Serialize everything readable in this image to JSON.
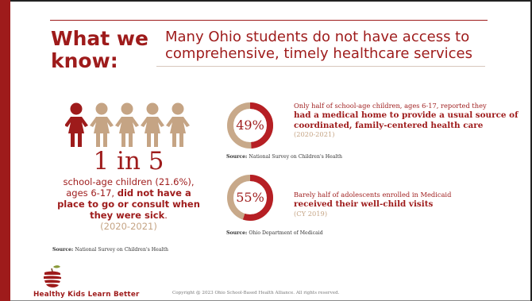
{
  "header": {
    "title": "What we know:",
    "subtitle": "Many Ohio students do not have access to comprehensive, timely healthcare services"
  },
  "left_stat": {
    "figure": "1 in 5",
    "highlighted_people": 1,
    "total_people": 5,
    "desc_plain": "school-age children (21.6%), ages 6-17,",
    "desc_bold": "did not have a place to go or consult when they were sick",
    "desc_end": ".",
    "years": "(2020-2021)",
    "source_label": "Source:",
    "source_text": "National Survey on Children's Health"
  },
  "stats": [
    {
      "percent_label": "49%",
      "percent_value": 49,
      "lead": "Only half of school-age children, ages 6-17, reported they",
      "emphasis": "had a medical home to provide a usual source of coordinated, family-centered health care",
      "years": "(2020-2021)",
      "source_label": "Source:",
      "source_text": "National Survey on Children's Health"
    },
    {
      "percent_label": "55%",
      "percent_value": 55,
      "lead": "Barely half of adolescents enrolled in Medicaid",
      "emphasis": "received their well-child visits",
      "years": "(CY 2019)",
      "source_label": "Source:",
      "source_text": "Ohio Department of Medicaid"
    }
  ],
  "footer": {
    "tagline": "Healthy Kids Learn Better",
    "copyright": "Copyright @ 2023 Ohio School-Based Health Alliance. All rights reserved."
  },
  "colors": {
    "brand_red": "#9e1b1b",
    "tan": "#c5a484",
    "donut_track": "#c8a98a"
  }
}
